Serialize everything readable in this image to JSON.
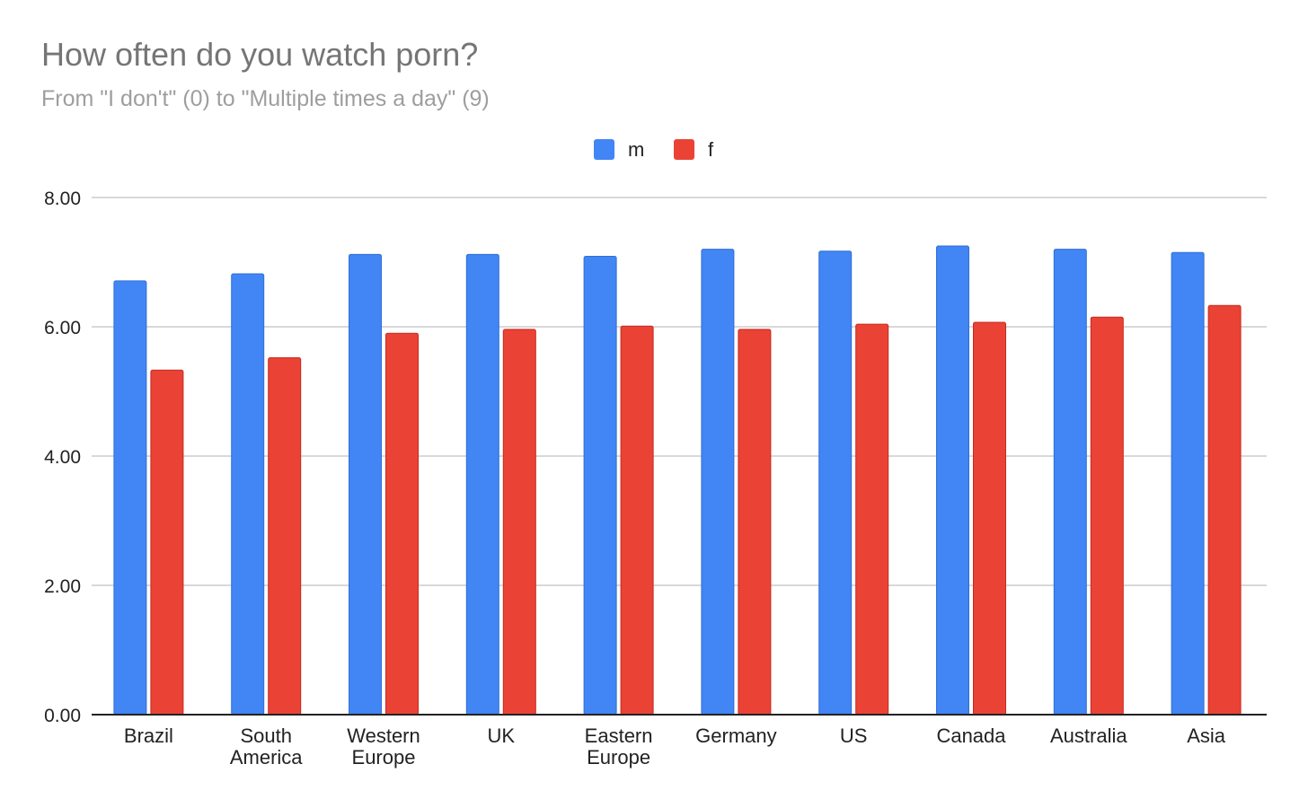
{
  "chart_data": {
    "type": "bar",
    "title": "How often do you watch porn?",
    "subtitle": "From \"I don't\" (0) to \"Multiple times a day\" (9)",
    "categories": [
      "Brazil",
      "South America",
      "Western Europe",
      "UK",
      "Eastern Europe",
      "Germany",
      "US",
      "Canada",
      "Australia",
      "Asia"
    ],
    "category_lines": [
      [
        "Brazil"
      ],
      [
        "South",
        "America"
      ],
      [
        "Western",
        "Europe"
      ],
      [
        "UK"
      ],
      [
        "Eastern",
        "Europe"
      ],
      [
        "Germany"
      ],
      [
        "US"
      ],
      [
        "Canada"
      ],
      [
        "Australia"
      ],
      [
        "Asia"
      ]
    ],
    "series": [
      {
        "name": "m",
        "color": "#4285f4",
        "values": [
          6.71,
          6.82,
          7.12,
          7.12,
          7.09,
          7.2,
          7.17,
          7.25,
          7.2,
          7.15
        ]
      },
      {
        "name": "f",
        "color": "#ea4335",
        "values": [
          5.33,
          5.52,
          5.9,
          5.96,
          6.01,
          5.96,
          6.04,
          6.07,
          6.15,
          6.33
        ]
      }
    ],
    "yticks": [
      "0.00",
      "2.00",
      "4.00",
      "6.00",
      "8.00"
    ],
    "ylim": [
      0,
      8
    ],
    "xlabel": "",
    "ylabel": "",
    "grid": true,
    "legend_position": "top-center"
  }
}
